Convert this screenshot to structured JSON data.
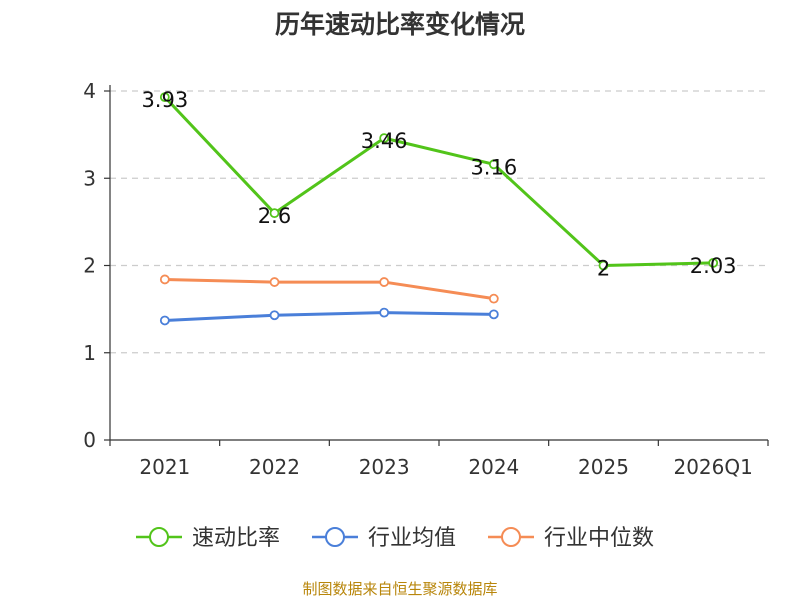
{
  "chart_data": {
    "type": "line",
    "title": "历年速动比率变化情况",
    "categories": [
      "2021",
      "2022",
      "2023",
      "2024",
      "2025",
      "2026Q1"
    ],
    "ylim": [
      0,
      4
    ],
    "yticks": [
      0,
      1,
      2,
      3,
      4
    ],
    "grid": true,
    "legend_position": "bottom",
    "series": [
      {
        "name": "速动比率",
        "color": "#52c41a",
        "values": [
          3.93,
          2.6,
          3.46,
          3.16,
          2,
          2.03
        ],
        "show_labels": true
      },
      {
        "name": "行业均值",
        "color": "#4a7fd9",
        "values": [
          1.37,
          1.43,
          1.46,
          1.44,
          null,
          null
        ],
        "show_labels": false
      },
      {
        "name": "行业中位数",
        "color": "#f58c55",
        "values": [
          1.84,
          1.81,
          1.81,
          1.62,
          null,
          null
        ],
        "show_labels": false
      }
    ],
    "labels": [
      "3.93",
      "2.6",
      "3.46",
      "3.16",
      "2",
      "2.03"
    ]
  },
  "source": "制图数据来自恒生聚源数据库"
}
